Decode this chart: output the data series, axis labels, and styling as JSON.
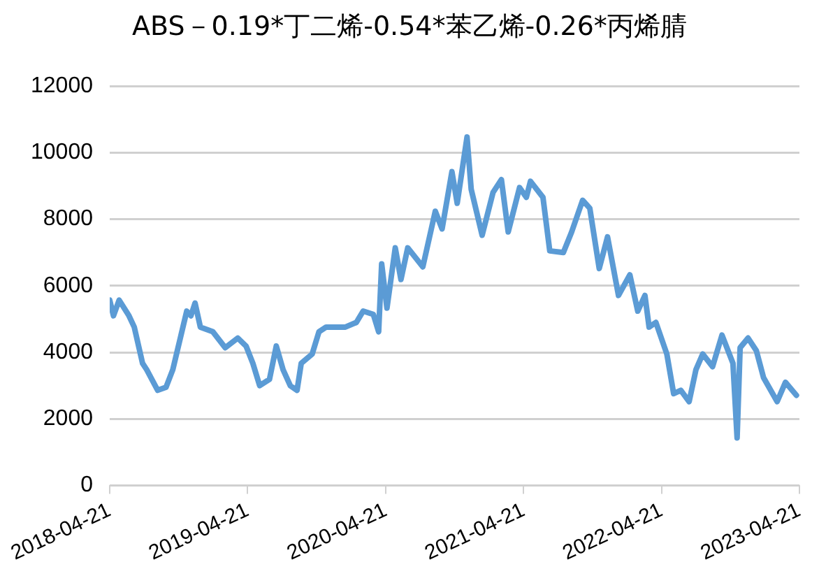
{
  "chart_data": {
    "type": "line",
    "title": "ABS－0.19*丁二烯-0.54*苯乙烯-0.26*丙烯腈",
    "x": [
      "2018-04-21",
      "2018-05-01",
      "2018-05-16",
      "2018-06-11",
      "2018-06-25",
      "2018-07-17",
      "2018-07-28",
      "2018-08-26",
      "2018-09-17",
      "2018-10-05",
      "2018-11-11",
      "2018-11-22",
      "2018-12-03",
      "2018-12-17",
      "2019-01-19",
      "2019-02-21",
      "2019-03-26",
      "2019-04-17",
      "2019-05-05",
      "2019-05-23",
      "2019-06-18",
      "2019-07-06",
      "2019-07-24",
      "2019-08-12",
      "2019-08-30",
      "2019-09-10",
      "2019-10-09",
      "2019-10-27",
      "2019-11-15",
      "2019-12-10",
      "2020-01-05",
      "2020-02-03",
      "2020-02-21",
      "2020-03-19",
      "2020-04-02",
      "2020-04-10",
      "2020-04-24",
      "2020-05-16",
      "2020-05-31",
      "2020-06-18",
      "2020-07-28",
      "2020-08-30",
      "2020-09-17",
      "2020-10-13",
      "2020-10-27",
      "2020-11-22",
      "2020-12-03",
      "2021-01-01",
      "2021-01-30",
      "2021-02-21",
      "2021-03-11",
      "2021-04-10",
      "2021-04-28",
      "2021-05-09",
      "2021-06-11",
      "2021-06-29",
      "2021-08-04",
      "2021-08-26",
      "2021-09-24",
      "2021-10-13",
      "2021-11-07",
      "2021-11-29",
      "2021-12-28",
      "2022-01-27",
      "2022-02-17",
      "2022-03-08",
      "2022-03-19",
      "2022-04-06",
      "2022-05-05",
      "2022-05-23",
      "2022-06-11",
      "2022-07-03",
      "2022-07-21",
      "2022-08-08",
      "2022-09-03",
      "2022-09-28",
      "2022-10-27",
      "2022-11-07",
      "2022-11-15",
      "2022-12-06",
      "2022-12-28",
      "2023-01-16",
      "2023-02-21",
      "2023-03-15",
      "2023-04-13"
    ],
    "series": [
      {
        "color": "#5b9bd5",
        "values": [
          5570,
          5100,
          5570,
          5100,
          4760,
          3670,
          3480,
          2860,
          2950,
          3480,
          5240,
          5100,
          5480,
          4760,
          4620,
          4140,
          4430,
          4190,
          3670,
          3000,
          3190,
          4190,
          3480,
          3000,
          2860,
          3670,
          3950,
          4620,
          4760,
          4760,
          4760,
          4900,
          5240,
          5140,
          4620,
          6660,
          5330,
          7140,
          6190,
          7140,
          6570,
          8240,
          7710,
          9430,
          8480,
          10470,
          8900,
          7520,
          8810,
          9190,
          7620,
          8950,
          8660,
          9140,
          8660,
          7050,
          7000,
          7620,
          8570,
          8330,
          6520,
          7470,
          5710,
          6330,
          5240,
          5710,
          4760,
          4900,
          3950,
          2760,
          2860,
          2520,
          3480,
          3950,
          3570,
          4520,
          3670,
          1430,
          4140,
          4430,
          4050,
          3240,
          2520,
          3100,
          2710
        ]
      }
    ],
    "xlim": [
      "2018-04-21",
      "2023-04-21"
    ],
    "xticks": [
      "2018-04-21",
      "2019-04-21",
      "2020-04-21",
      "2021-04-21",
      "2022-04-21",
      "2023-04-21"
    ],
    "ylim": [
      0,
      12000
    ],
    "yticks": [
      0,
      2000,
      4000,
      6000,
      8000,
      10000,
      12000
    ],
    "grid": "y",
    "marker": "none",
    "line_style": "solid"
  }
}
